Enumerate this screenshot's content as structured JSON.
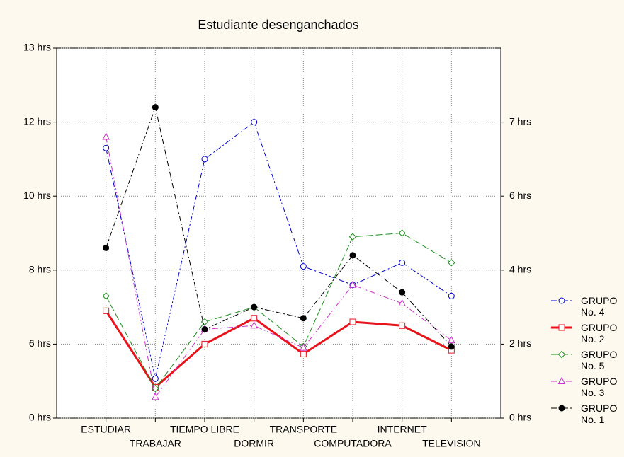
{
  "chart_data": {
    "type": "line",
    "title": "Estudiante desenganchados",
    "categories": [
      "ESTUDIAR",
      "TRABAJAR",
      "TIEMPO LIBRE",
      "DORMIR",
      "TRANSPORTE",
      "COMPUTADORA",
      "INTERNET",
      "TELEVISION"
    ],
    "ylim": [
      0,
      13
    ],
    "yticks": [
      {
        "value": 0,
        "label": "0 hrs"
      },
      {
        "value": 6,
        "label": "6 hrs"
      },
      {
        "value": 8,
        "label": "8 hrs"
      },
      {
        "value": 10,
        "label": "10 hrs"
      },
      {
        "value": 12,
        "label": "12 hrs"
      },
      {
        "value": 13,
        "label": "13 hrs"
      }
    ],
    "y2ticks": [
      {
        "value": 0,
        "label": "0 hrs"
      },
      {
        "value": 2,
        "label": "2 hrs"
      },
      {
        "value": 4,
        "label": "4 hrs"
      },
      {
        "value": 6,
        "label": "6 hrs"
      },
      {
        "value": 7,
        "label": "7 hrs"
      }
    ],
    "grid": true,
    "series": [
      {
        "name": "GRUPO No. 4",
        "color": "#0000cc",
        "marker": "circle",
        "dash": "8 3 2 3",
        "values": [
          11.3,
          3.2,
          11.0,
          12,
          8.1,
          7.6,
          8.2,
          7.3
        ]
      },
      {
        "name": "GRUPO No. 2",
        "color": "#e8141a",
        "marker": "square",
        "dash": "none",
        "values": [
          6.9,
          2.5,
          6.0,
          6.7,
          5.2,
          6.6,
          6.5,
          5.5
        ]
      },
      {
        "name": "GRUPO No. 5",
        "color": "#1a8c1a",
        "marker": "diamond",
        "dash": "10 4",
        "values": [
          7.3,
          2.4,
          6.6,
          7.0,
          5.8,
          8.9,
          9.0,
          8.2
        ]
      },
      {
        "name": "GRUPO No. 3",
        "color": "#cc33cc",
        "marker": "triangle",
        "dash": "8 3 2 3 2 3",
        "values": [
          11.6,
          1.7,
          6.4,
          6.5,
          5.7,
          7.6,
          7.1,
          6.1
        ]
      },
      {
        "name": "GRUPO No. 1",
        "color": "#000000",
        "marker": "dot",
        "dash": "8 3 2 3",
        "values": [
          8.6,
          12.2,
          6.4,
          7.0,
          6.7,
          8.4,
          7.4,
          5.8
        ]
      }
    ]
  }
}
